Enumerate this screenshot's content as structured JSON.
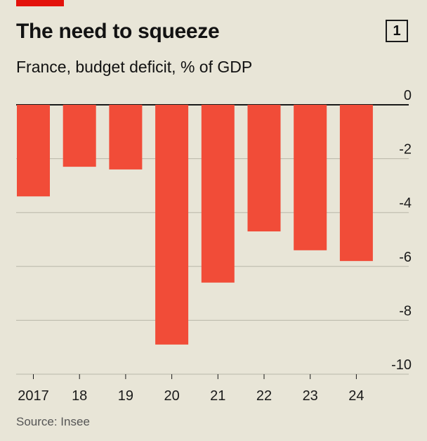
{
  "header": {
    "title": "The need to squeeze",
    "badge": "1",
    "subtitle": "France, budget deficit, % of GDP"
  },
  "footer": {
    "source": "Source: Insee"
  },
  "colors": {
    "bar": "#f14c38",
    "gridline": "#b8b6a8",
    "zero_line": "#1a1a1a",
    "background": "#e8e5d7",
    "brand_tag": "#e3120b"
  },
  "chart_data": {
    "type": "bar",
    "title": "The need to squeeze",
    "subtitle": "France, budget deficit, % of GDP",
    "categories": [
      "2017",
      "18",
      "19",
      "20",
      "21",
      "22",
      "23",
      "24"
    ],
    "values": [
      -3.4,
      -2.3,
      -2.4,
      -8.9,
      -6.6,
      -4.7,
      -5.4,
      -5.8
    ],
    "ylim": [
      -10,
      0
    ],
    "yticks": [
      0,
      -2,
      -4,
      -6,
      -8,
      -10
    ],
    "ytick_labels": [
      "0",
      "-2",
      "-4",
      "-6",
      "-8",
      "-10"
    ],
    "y_axis_side": "right",
    "grid": true,
    "source": "Source: Insee"
  }
}
